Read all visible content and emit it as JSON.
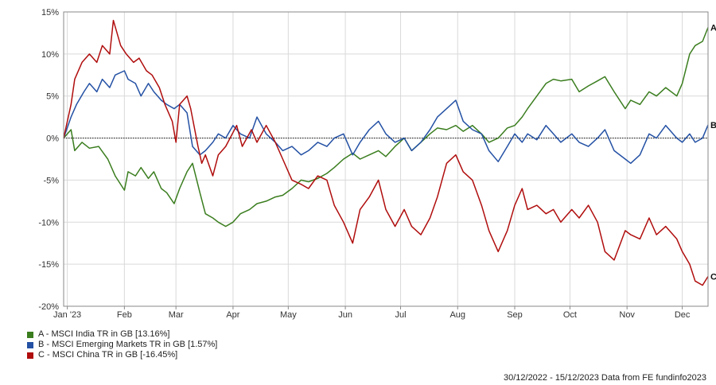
{
  "chart_data": {
    "type": "line",
    "y_unit": "%",
    "ylim": [
      -20,
      15
    ],
    "yticks": [
      15,
      10,
      5,
      0,
      -5,
      -10,
      -15,
      -20
    ],
    "ytick_labels": [
      "15%",
      "10%",
      "5%",
      "0%",
      "-5%",
      "-10%",
      "-15%",
      "-20%"
    ],
    "xlim": [
      "2022-12-30",
      "2023-12-15"
    ],
    "xticks": [
      {
        "label": "Jan '23",
        "date": "2023-01-01"
      },
      {
        "label": "Feb",
        "date": "2023-02-01"
      },
      {
        "label": "Mar",
        "date": "2023-03-01"
      },
      {
        "label": "Apr",
        "date": "2023-04-01"
      },
      {
        "label": "May",
        "date": "2023-05-01"
      },
      {
        "label": "Jun",
        "date": "2023-06-01"
      },
      {
        "label": "Jul",
        "date": "2023-07-01"
      },
      {
        "label": "Aug",
        "date": "2023-08-01"
      },
      {
        "label": "Sep",
        "date": "2023-09-01"
      },
      {
        "label": "Oct",
        "date": "2023-10-01"
      },
      {
        "label": "Nov",
        "date": "2023-11-01"
      },
      {
        "label": "Dec",
        "date": "2023-12-01"
      }
    ],
    "grid": true,
    "zero_line": "dotted",
    "legend_position": "bottom-left",
    "series": [
      {
        "name": "A - MSCI India TR in GB [13.16%]",
        "end_label": "A",
        "color": "#3a7d1e",
        "points": [
          [
            "2022-12-30",
            0
          ],
          [
            "2023-01-03",
            1.0
          ],
          [
            "2023-01-05",
            -1.5
          ],
          [
            "2023-01-09",
            -0.5
          ],
          [
            "2023-01-13",
            -1.2
          ],
          [
            "2023-01-18",
            -1.0
          ],
          [
            "2023-01-23",
            -2.5
          ],
          [
            "2023-01-27",
            -4.5
          ],
          [
            "2023-02-01",
            -6.2
          ],
          [
            "2023-02-03",
            -4.0
          ],
          [
            "2023-02-07",
            -4.5
          ],
          [
            "2023-02-10",
            -3.5
          ],
          [
            "2023-02-14",
            -4.8
          ],
          [
            "2023-02-17",
            -4.0
          ],
          [
            "2023-02-21",
            -6.0
          ],
          [
            "2023-02-24",
            -6.5
          ],
          [
            "2023-02-28",
            -7.8
          ],
          [
            "2023-03-03",
            -6.0
          ],
          [
            "2023-03-07",
            -4.0
          ],
          [
            "2023-03-10",
            -3.0
          ],
          [
            "2023-03-14",
            -6.5
          ],
          [
            "2023-03-17",
            -9.0
          ],
          [
            "2023-03-21",
            -9.5
          ],
          [
            "2023-03-24",
            -10.0
          ],
          [
            "2023-03-28",
            -10.5
          ],
          [
            "2023-04-01",
            -10.0
          ],
          [
            "2023-04-05",
            -9.0
          ],
          [
            "2023-04-10",
            -8.5
          ],
          [
            "2023-04-14",
            -7.8
          ],
          [
            "2023-04-19",
            -7.5
          ],
          [
            "2023-04-24",
            -7.0
          ],
          [
            "2023-04-28",
            -6.8
          ],
          [
            "2023-05-03",
            -6.0
          ],
          [
            "2023-05-08",
            -5.0
          ],
          [
            "2023-05-12",
            -5.2
          ],
          [
            "2023-05-17",
            -4.8
          ],
          [
            "2023-05-22",
            -4.2
          ],
          [
            "2023-05-26",
            -3.5
          ],
          [
            "2023-05-31",
            -2.5
          ],
          [
            "2023-06-05",
            -1.8
          ],
          [
            "2023-06-09",
            -2.5
          ],
          [
            "2023-06-14",
            -2.0
          ],
          [
            "2023-06-19",
            -1.5
          ],
          [
            "2023-06-23",
            -2.2
          ],
          [
            "2023-06-28",
            -1.0
          ],
          [
            "2023-07-03",
            0.0
          ],
          [
            "2023-07-07",
            -1.5
          ],
          [
            "2023-07-12",
            -0.5
          ],
          [
            "2023-07-17",
            0.5
          ],
          [
            "2023-07-21",
            1.2
          ],
          [
            "2023-07-26",
            1.0
          ],
          [
            "2023-07-31",
            1.5
          ],
          [
            "2023-08-04",
            0.8
          ],
          [
            "2023-08-09",
            1.5
          ],
          [
            "2023-08-14",
            0.5
          ],
          [
            "2023-08-18",
            -0.5
          ],
          [
            "2023-08-23",
            0.0
          ],
          [
            "2023-08-28",
            1.2
          ],
          [
            "2023-09-01",
            1.5
          ],
          [
            "2023-09-05",
            2.5
          ],
          [
            "2023-09-08",
            3.5
          ],
          [
            "2023-09-13",
            5.0
          ],
          [
            "2023-09-18",
            6.5
          ],
          [
            "2023-09-22",
            7.0
          ],
          [
            "2023-09-26",
            6.8
          ],
          [
            "2023-10-02",
            7.0
          ],
          [
            "2023-10-06",
            5.5
          ],
          [
            "2023-10-11",
            6.2
          ],
          [
            "2023-10-16",
            6.8
          ],
          [
            "2023-10-20",
            7.3
          ],
          [
            "2023-10-25",
            5.5
          ],
          [
            "2023-10-31",
            3.5
          ],
          [
            "2023-11-03",
            4.5
          ],
          [
            "2023-11-08",
            4.0
          ],
          [
            "2023-11-13",
            5.5
          ],
          [
            "2023-11-17",
            5.0
          ],
          [
            "2023-11-22",
            6.0
          ],
          [
            "2023-11-28",
            5.0
          ],
          [
            "2023-12-01",
            6.5
          ],
          [
            "2023-12-05",
            10.0
          ],
          [
            "2023-12-08",
            11.0
          ],
          [
            "2023-12-12",
            11.5
          ],
          [
            "2023-12-15",
            13.16
          ]
        ]
      },
      {
        "name": "B - MSCI Emerging Markets TR in GB [1.57%]",
        "end_label": "B",
        "color": "#2451a4",
        "points": [
          [
            "2022-12-30",
            0
          ],
          [
            "2023-01-03",
            2.5
          ],
          [
            "2023-01-06",
            4.0
          ],
          [
            "2023-01-10",
            5.5
          ],
          [
            "2023-01-13",
            6.5
          ],
          [
            "2023-01-17",
            5.5
          ],
          [
            "2023-01-20",
            7.0
          ],
          [
            "2023-01-24",
            6.0
          ],
          [
            "2023-01-27",
            7.5
          ],
          [
            "2023-02-01",
            8.0
          ],
          [
            "2023-02-03",
            7.0
          ],
          [
            "2023-02-07",
            6.5
          ],
          [
            "2023-02-10",
            5.0
          ],
          [
            "2023-02-14",
            6.5
          ],
          [
            "2023-02-17",
            5.5
          ],
          [
            "2023-02-21",
            4.5
          ],
          [
            "2023-02-24",
            4.0
          ],
          [
            "2023-02-28",
            3.5
          ],
          [
            "2023-03-03",
            4.0
          ],
          [
            "2023-03-07",
            3.0
          ],
          [
            "2023-03-10",
            -1.0
          ],
          [
            "2023-03-14",
            -2.0
          ],
          [
            "2023-03-17",
            -1.5
          ],
          [
            "2023-03-21",
            -0.5
          ],
          [
            "2023-03-24",
            0.5
          ],
          [
            "2023-03-28",
            0.0
          ],
          [
            "2023-04-01",
            1.5
          ],
          [
            "2023-04-05",
            0.5
          ],
          [
            "2023-04-10",
            0.0
          ],
          [
            "2023-04-14",
            2.5
          ],
          [
            "2023-04-19",
            0.5
          ],
          [
            "2023-04-24",
            -0.5
          ],
          [
            "2023-04-28",
            -1.5
          ],
          [
            "2023-05-03",
            -1.0
          ],
          [
            "2023-05-08",
            -2.0
          ],
          [
            "2023-05-12",
            -1.5
          ],
          [
            "2023-05-17",
            -0.5
          ],
          [
            "2023-05-22",
            -1.0
          ],
          [
            "2023-05-26",
            0.0
          ],
          [
            "2023-05-31",
            0.5
          ],
          [
            "2023-06-05",
            -2.0
          ],
          [
            "2023-06-09",
            -0.5
          ],
          [
            "2023-06-14",
            1.0
          ],
          [
            "2023-06-19",
            2.0
          ],
          [
            "2023-06-23",
            0.5
          ],
          [
            "2023-06-28",
            -0.5
          ],
          [
            "2023-07-03",
            0.0
          ],
          [
            "2023-07-07",
            -1.5
          ],
          [
            "2023-07-12",
            -0.5
          ],
          [
            "2023-07-17",
            1.0
          ],
          [
            "2023-07-21",
            2.5
          ],
          [
            "2023-07-26",
            3.5
          ],
          [
            "2023-07-31",
            4.5
          ],
          [
            "2023-08-04",
            2.0
          ],
          [
            "2023-08-09",
            1.0
          ],
          [
            "2023-08-14",
            0.5
          ],
          [
            "2023-08-18",
            -1.5
          ],
          [
            "2023-08-23",
            -2.8
          ],
          [
            "2023-08-28",
            -1.0
          ],
          [
            "2023-09-01",
            0.5
          ],
          [
            "2023-09-05",
            -0.5
          ],
          [
            "2023-09-08",
            0.5
          ],
          [
            "2023-09-13",
            -0.2
          ],
          [
            "2023-09-18",
            1.5
          ],
          [
            "2023-09-22",
            0.5
          ],
          [
            "2023-09-26",
            -0.5
          ],
          [
            "2023-10-02",
            0.5
          ],
          [
            "2023-10-06",
            -0.5
          ],
          [
            "2023-10-11",
            -1.0
          ],
          [
            "2023-10-16",
            0.0
          ],
          [
            "2023-10-20",
            1.0
          ],
          [
            "2023-10-25",
            -1.5
          ],
          [
            "2023-10-31",
            -2.5
          ],
          [
            "2023-11-03",
            -3.0
          ],
          [
            "2023-11-08",
            -2.0
          ],
          [
            "2023-11-13",
            0.5
          ],
          [
            "2023-11-17",
            0.0
          ],
          [
            "2023-11-22",
            1.5
          ],
          [
            "2023-11-28",
            0.0
          ],
          [
            "2023-12-01",
            -0.5
          ],
          [
            "2023-12-05",
            0.5
          ],
          [
            "2023-12-08",
            -0.5
          ],
          [
            "2023-12-12",
            0.0
          ],
          [
            "2023-12-15",
            1.57
          ]
        ]
      },
      {
        "name": "C - MSCI China TR in GB [-16.45%]",
        "end_label": "C",
        "color": "#b00d0d",
        "points": [
          [
            "2022-12-30",
            0
          ],
          [
            "2023-01-03",
            4.0
          ],
          [
            "2023-01-05",
            7.0
          ],
          [
            "2023-01-09",
            9.0
          ],
          [
            "2023-01-13",
            10.0
          ],
          [
            "2023-01-17",
            9.0
          ],
          [
            "2023-01-20",
            11.0
          ],
          [
            "2023-01-24",
            10.0
          ],
          [
            "2023-01-26",
            14.0
          ],
          [
            "2023-01-30",
            11.0
          ],
          [
            "2023-02-02",
            10.0
          ],
          [
            "2023-02-06",
            9.0
          ],
          [
            "2023-02-09",
            9.5
          ],
          [
            "2023-02-13",
            8.0
          ],
          [
            "2023-02-16",
            7.5
          ],
          [
            "2023-02-20",
            6.0
          ],
          [
            "2023-02-23",
            4.0
          ],
          [
            "2023-02-27",
            2.0
          ],
          [
            "2023-03-01",
            -0.5
          ],
          [
            "2023-03-03",
            4.0
          ],
          [
            "2023-03-07",
            5.0
          ],
          [
            "2023-03-09",
            3.5
          ],
          [
            "2023-03-13",
            -1.0
          ],
          [
            "2023-03-15",
            -3.0
          ],
          [
            "2023-03-17",
            -2.0
          ],
          [
            "2023-03-21",
            -4.5
          ],
          [
            "2023-03-24",
            -2.0
          ],
          [
            "2023-03-28",
            -1.0
          ],
          [
            "2023-04-03",
            1.5
          ],
          [
            "2023-04-06",
            -1.0
          ],
          [
            "2023-04-11",
            1.0
          ],
          [
            "2023-04-14",
            -0.5
          ],
          [
            "2023-04-19",
            1.5
          ],
          [
            "2023-04-24",
            -0.5
          ],
          [
            "2023-04-28",
            -2.5
          ],
          [
            "2023-05-03",
            -5.0
          ],
          [
            "2023-05-08",
            -5.5
          ],
          [
            "2023-05-12",
            -6.0
          ],
          [
            "2023-05-17",
            -4.5
          ],
          [
            "2023-05-22",
            -5.0
          ],
          [
            "2023-05-26",
            -8.0
          ],
          [
            "2023-05-31",
            -10.0
          ],
          [
            "2023-06-05",
            -12.5
          ],
          [
            "2023-06-09",
            -8.5
          ],
          [
            "2023-06-14",
            -7.0
          ],
          [
            "2023-06-19",
            -5.0
          ],
          [
            "2023-06-23",
            -8.5
          ],
          [
            "2023-06-28",
            -10.5
          ],
          [
            "2023-07-03",
            -8.5
          ],
          [
            "2023-07-07",
            -10.5
          ],
          [
            "2023-07-12",
            -11.5
          ],
          [
            "2023-07-17",
            -9.5
          ],
          [
            "2023-07-21",
            -7.0
          ],
          [
            "2023-07-26",
            -3.0
          ],
          [
            "2023-07-31",
            -2.0
          ],
          [
            "2023-08-04",
            -4.0
          ],
          [
            "2023-08-09",
            -5.0
          ],
          [
            "2023-08-14",
            -8.0
          ],
          [
            "2023-08-18",
            -11.0
          ],
          [
            "2023-08-23",
            -13.5
          ],
          [
            "2023-08-28",
            -11.0
          ],
          [
            "2023-09-01",
            -8.0
          ],
          [
            "2023-09-05",
            -6.0
          ],
          [
            "2023-09-08",
            -8.5
          ],
          [
            "2023-09-13",
            -8.0
          ],
          [
            "2023-09-18",
            -9.0
          ],
          [
            "2023-09-22",
            -8.5
          ],
          [
            "2023-09-26",
            -10.0
          ],
          [
            "2023-10-02",
            -8.5
          ],
          [
            "2023-10-06",
            -9.5
          ],
          [
            "2023-10-11",
            -8.0
          ],
          [
            "2023-10-16",
            -10.0
          ],
          [
            "2023-10-20",
            -13.5
          ],
          [
            "2023-10-25",
            -14.5
          ],
          [
            "2023-10-31",
            -11.0
          ],
          [
            "2023-11-03",
            -11.5
          ],
          [
            "2023-11-08",
            -12.0
          ],
          [
            "2023-11-13",
            -9.5
          ],
          [
            "2023-11-17",
            -11.5
          ],
          [
            "2023-11-22",
            -10.5
          ],
          [
            "2023-11-28",
            -12.0
          ],
          [
            "2023-12-01",
            -13.5
          ],
          [
            "2023-12-05",
            -15.0
          ],
          [
            "2023-12-08",
            -17.0
          ],
          [
            "2023-12-12",
            -17.5
          ],
          [
            "2023-12-15",
            -16.45
          ]
        ]
      }
    ],
    "footer": "30/12/2022 - 15/12/2023 Data from FE fundinfo2023"
  }
}
